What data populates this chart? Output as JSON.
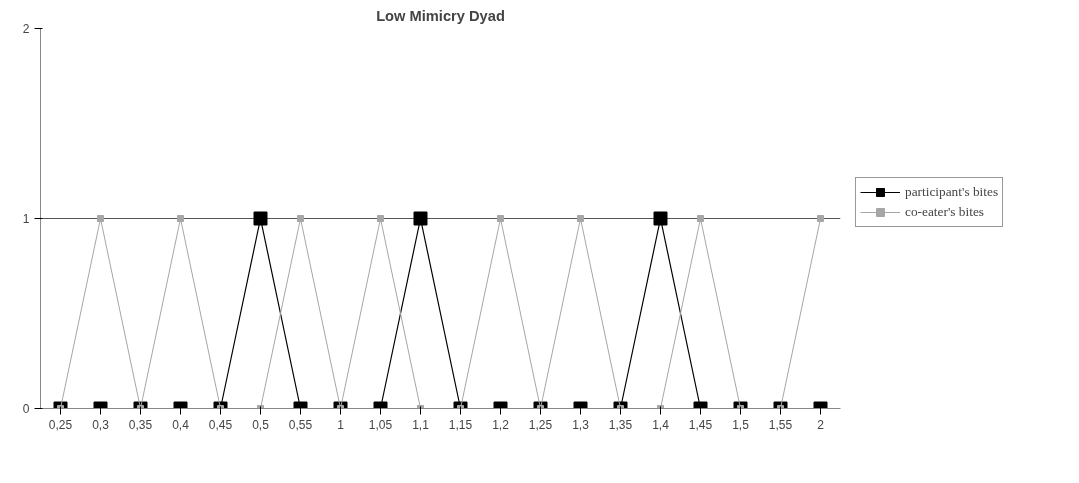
{
  "chart_data": {
    "type": "line",
    "title": "Low Mimicry Dyad",
    "categories": [
      "0,25",
      "0,3",
      "0,35",
      "0,4",
      "0,45",
      "0,5",
      "0,55",
      "1",
      "1,05",
      "1,1",
      "1,15",
      "1,2",
      "1,25",
      "1,3",
      "1,35",
      "1,4",
      "1,45",
      "1,5",
      "1,55",
      "2"
    ],
    "series": [
      {
        "name": "participant's bites",
        "color": "#000000",
        "values": [
          0,
          0,
          0,
          0,
          0,
          1,
          0,
          0,
          0,
          1,
          0,
          0,
          0,
          0,
          0,
          1,
          0,
          0,
          0,
          0
        ]
      },
      {
        "name": "co-eater's bites",
        "color": "#a6a6a6",
        "values": [
          0,
          1,
          0,
          1,
          0,
          0,
          1,
          0,
          1,
          0,
          0,
          1,
          0,
          1,
          0,
          0,
          1,
          0,
          0,
          1
        ]
      }
    ],
    "ylim": [
      0,
      2
    ],
    "yticks": [
      0,
      1,
      2
    ],
    "grid": "y",
    "legend": "right",
    "marker": "square",
    "line_style": "solid"
  }
}
